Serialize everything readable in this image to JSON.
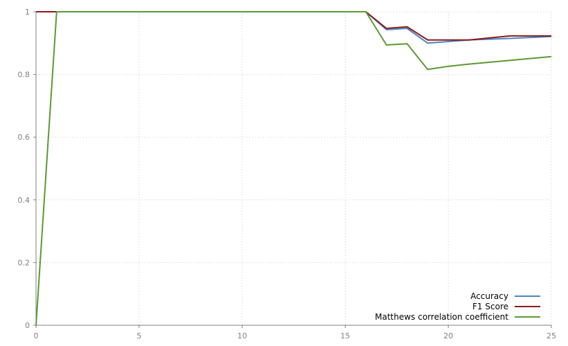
{
  "chart_data": {
    "type": "line",
    "title": "",
    "xlabel": "",
    "ylabel": "",
    "xlim": [
      0,
      25
    ],
    "ylim": [
      0,
      1
    ],
    "xticks": [
      0,
      5,
      10,
      15,
      20,
      25
    ],
    "yticks": [
      0,
      0.2,
      0.4,
      0.6,
      0.8,
      1
    ],
    "xtick_labels": [
      "0",
      "5",
      "10",
      "15",
      "20",
      "25"
    ],
    "ytick_labels": [
      "0",
      "0.2",
      "0.4",
      "0.6",
      "0.8",
      "1"
    ],
    "grid": true,
    "legend_position": "bottom-right",
    "series": [
      {
        "name": "Accuracy",
        "color": "#4a84c4",
        "x": [
          0,
          1,
          16,
          17,
          18,
          19,
          20,
          21,
          23,
          25
        ],
        "values": [
          1.0,
          1.0,
          1.0,
          0.943,
          0.947,
          0.9,
          0.905,
          0.91,
          0.915,
          0.921
        ]
      },
      {
        "name": "F1 Score",
        "color": "#8b1a1a",
        "x": [
          0,
          1,
          16,
          17,
          18,
          19,
          20,
          21,
          23,
          25
        ],
        "values": [
          1.0,
          1.0,
          1.0,
          0.947,
          0.952,
          0.91,
          0.91,
          0.91,
          0.923,
          0.923
        ]
      },
      {
        "name": "Matthews correlation coefficient",
        "color": "#5a9a32",
        "x": [
          0,
          1,
          16,
          17,
          18,
          19,
          20,
          21,
          23,
          25
        ],
        "values": [
          0.0,
          1.0,
          1.0,
          0.894,
          0.898,
          0.816,
          0.826,
          0.833,
          0.845,
          0.857
        ]
      }
    ]
  }
}
